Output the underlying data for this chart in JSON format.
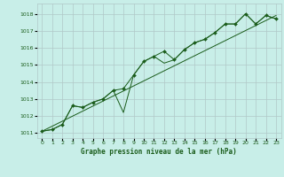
{
  "title": "Graphe pression niveau de la mer (hPa)",
  "bg_color": "#c8eee8",
  "grid_color": "#b0c8c8",
  "line_color": "#1a5c1a",
  "xlim": [
    -0.5,
    23.5
  ],
  "ylim": [
    1010.7,
    1018.6
  ],
  "yticks": [
    1011,
    1012,
    1013,
    1014,
    1015,
    1016,
    1017,
    1018
  ],
  "xticks": [
    0,
    1,
    2,
    3,
    4,
    5,
    6,
    7,
    8,
    9,
    10,
    11,
    12,
    13,
    14,
    15,
    16,
    17,
    18,
    19,
    20,
    21,
    22,
    23
  ],
  "series1_x": [
    0,
    1,
    2,
    3,
    4,
    5,
    6,
    7,
    8,
    9,
    10,
    11,
    12,
    13,
    14,
    15,
    16,
    17,
    18,
    19,
    20,
    21,
    22,
    23
  ],
  "series1_y": [
    1011.1,
    1011.2,
    1011.5,
    1012.6,
    1012.5,
    1012.8,
    1013.0,
    1013.5,
    1013.6,
    1014.4,
    1015.2,
    1015.5,
    1015.8,
    1015.3,
    1015.9,
    1016.3,
    1016.5,
    1016.9,
    1017.4,
    1017.4,
    1018.0,
    1017.4,
    1017.9,
    1017.7
  ],
  "series2_y": [
    1011.1,
    1011.2,
    1011.5,
    1012.6,
    1012.5,
    1012.8,
    1013.0,
    1013.5,
    1012.2,
    1014.4,
    1015.2,
    1015.5,
    1015.1,
    1015.3,
    1015.9,
    1016.3,
    1016.5,
    1016.9,
    1017.4,
    1017.4,
    1018.0,
    1017.4,
    1017.9,
    1017.7
  ],
  "series3_x": [
    0,
    23
  ],
  "series3_y": [
    1011.1,
    1017.9
  ]
}
